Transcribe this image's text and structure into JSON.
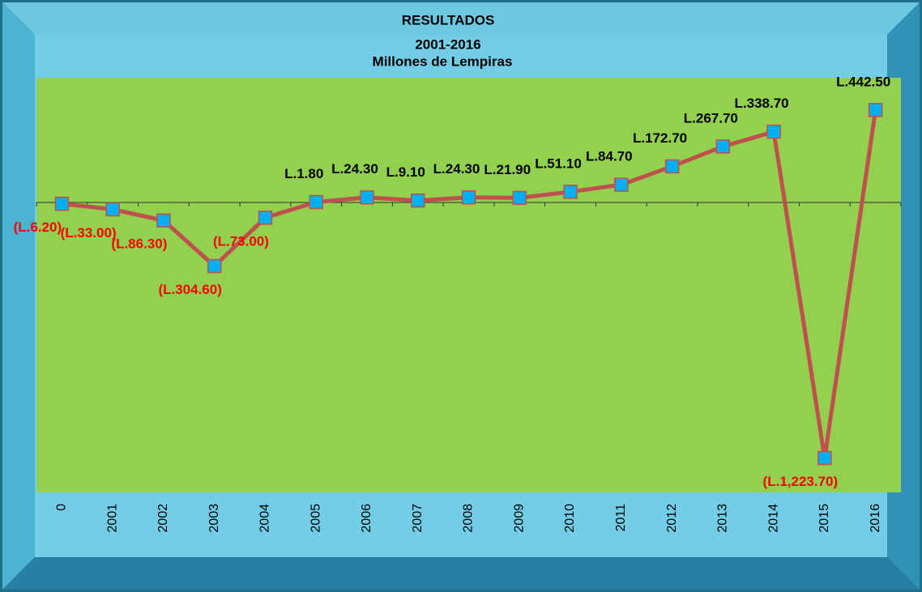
{
  "chart_data": {
    "type": "line",
    "title": "RESULTADOS",
    "subtitle": "2001-2016",
    "units": "Millones  de Lempiras",
    "categories": [
      "0",
      "2001",
      "2002",
      "2003",
      "2004",
      "2005",
      "2006",
      "2007",
      "2008",
      "2009",
      "2010",
      "2011",
      "2012",
      "2013",
      "2014",
      "2015",
      "2016"
    ],
    "series": [
      {
        "name": "Resultados",
        "color": "#c0504d",
        "marker_color": "#00b0f0",
        "values": [
          -6.2,
          -33,
          -86.3,
          -304.6,
          -73,
          1.8,
          24.3,
          9.1,
          24.3,
          21.9,
          51.1,
          84.7,
          172.7,
          267.7,
          338.7,
          -1223.7,
          442.5
        ],
        "value_labels": [
          "(L.6.20)",
          "(L.33.00)",
          "(L.86.30)",
          "(L.304.60)",
          "(L.73.00)",
          "L.1.80",
          "L.24.30",
          "L.9.10",
          "L.24.30",
          "L.21.90",
          "L.51.10",
          "L.84.70",
          "L.172.70",
          "L.267.70",
          "L.338.70",
          "(L.1,223.70)",
          "L.442.50"
        ]
      }
    ],
    "ylim": [
      -1388,
      597
    ],
    "plot_color": "#92d050"
  }
}
